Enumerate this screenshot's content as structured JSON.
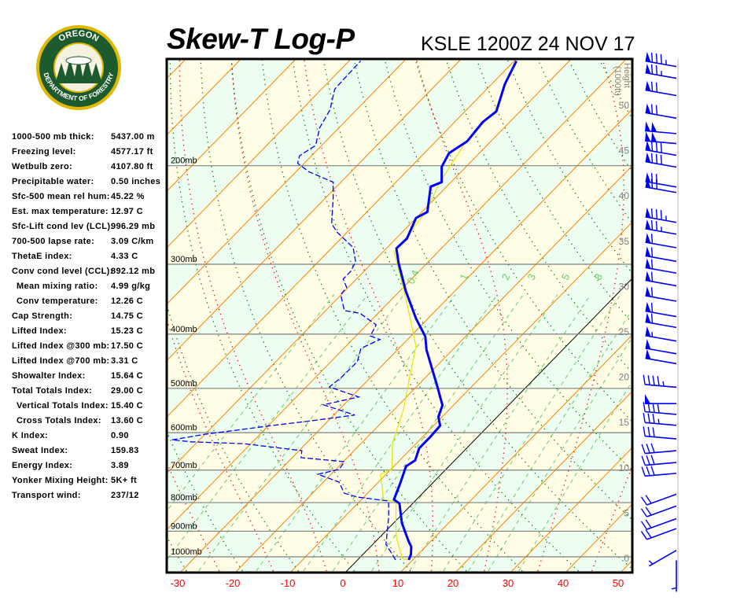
{
  "header": {
    "title": "Skew-T Log-P",
    "station_time": "KSLE 1200Z 24 NOV 17"
  },
  "logo": {
    "text_top": "OREGON",
    "text_bottom": "DEPARTMENT OF FORESTRY"
  },
  "indices": [
    {
      "label": "1000-500 mb thick:",
      "value": "5437.00 m"
    },
    {
      "label": "Freezing level:",
      "value": "4577.17 ft"
    },
    {
      "label": "Wetbulb zero:",
      "value": "4107.80 ft"
    },
    {
      "label": "Precipitable water:",
      "value": "0.50 inches"
    },
    {
      "label": "Sfc-500 mean rel hum:",
      "value": "45.22 %"
    },
    {
      "label": "Est. max temperature:",
      "value": "12.97 C"
    },
    {
      "label": "Sfc-Lift cond lev (LCL):",
      "value": "996.29 mb"
    },
    {
      "label": "700-500 lapse rate:",
      "value": "3.09 C/km"
    },
    {
      "label": "ThetaE index:",
      "value": "4.33 C"
    },
    {
      "label": "Conv cond level (CCL):",
      "value": "892.12 mb"
    },
    {
      "label": "Mean mixing ratio:",
      "value": "4.99 g/kg",
      "sub": true
    },
    {
      "label": "Conv temperature:",
      "value": "12.26 C",
      "sub": true
    },
    {
      "label": "Cap Strength:",
      "value": "14.75 C"
    },
    {
      "label": "Lifted Index:",
      "value": "15.23 C"
    },
    {
      "label": "Lifted Index @300 mb:",
      "value": "17.50 C"
    },
    {
      "label": "Lifted Index @700 mb:",
      "value": "3.31 C"
    },
    {
      "label": "Showalter Index:",
      "value": "15.64 C"
    },
    {
      "label": "Total Totals Index:",
      "value": "29.00 C"
    },
    {
      "label": "Vertical Totals Index:",
      "value": "15.40 C",
      "sub": true
    },
    {
      "label": "Cross Totals Index:",
      "value": "13.60 C",
      "sub": true
    },
    {
      "label": "K Index:",
      "value": "0.90"
    },
    {
      "label": "Sweat Index:",
      "value": "159.83"
    },
    {
      "label": "Energy Index:",
      "value": "3.89"
    },
    {
      "label": "Yonker Mixing Height:",
      "value": "5K+ ft"
    },
    {
      "label": "Transport wind:",
      "value": "237/12"
    }
  ],
  "chart_data": {
    "type": "line",
    "title": "Skew-T Log-P",
    "x_ticks": [
      "-30",
      "-20",
      "-10",
      "0",
      "10",
      "20",
      "30",
      "40",
      "50"
    ],
    "x_tick_values": [
      -30,
      -20,
      -10,
      0,
      10,
      20,
      30,
      40,
      50
    ],
    "pressure_labels": [
      {
        "p": 200,
        "label": "200mb"
      },
      {
        "p": 300,
        "label": "300mb"
      },
      {
        "p": 400,
        "label": "400mb"
      },
      {
        "p": 500,
        "label": "500mb"
      },
      {
        "p": 600,
        "label": "600mb"
      },
      {
        "p": 700,
        "label": "700mb"
      },
      {
        "p": 800,
        "label": "800mb"
      },
      {
        "p": 900,
        "label": "900mb"
      },
      {
        "p": 1000,
        "label": "1000mb"
      }
    ],
    "pressure_range_mb": [
      1050,
      130
    ],
    "height_axis": {
      "label_line1": "Height",
      "label_line2": "(1000ft)",
      "ticks": [
        "0",
        "5",
        "10",
        "15",
        "20",
        "25",
        "30",
        "35",
        "40",
        "45",
        "50"
      ],
      "tick_values": [
        0,
        5,
        10,
        15,
        20,
        25,
        30,
        35,
        40,
        45,
        50
      ]
    },
    "mixing_ratio_labels": [
      {
        "w": 0.4,
        "label": "0.4"
      },
      {
        "w": 1,
        "label": "1"
      },
      {
        "w": 2,
        "label": "2"
      },
      {
        "w": 3,
        "label": "3"
      },
      {
        "w": 5,
        "label": "5"
      },
      {
        "w": 8,
        "label": "8"
      }
    ],
    "series_temperature": [
      [
        1013,
        9.3
      ],
      [
        990,
        8.7
      ],
      [
        959,
        7.4
      ],
      [
        937,
        5.9
      ],
      [
        870,
        1.5
      ],
      [
        803,
        -2.4
      ],
      [
        790,
        -4.1
      ],
      [
        740,
        -5.8
      ],
      [
        689,
        -7.8
      ],
      [
        672,
        -7.2
      ],
      [
        640,
        -8.6
      ],
      [
        611,
        -8.6
      ],
      [
        583,
        -8.8
      ],
      [
        562,
        -10.7
      ],
      [
        536,
        -12.0
      ],
      [
        494,
        -16.5
      ],
      [
        427,
        -24.7
      ],
      [
        404,
        -27.3
      ],
      [
        375,
        -32.2
      ],
      [
        335,
        -38.9
      ],
      [
        299,
        -45.1
      ],
      [
        281,
        -48.2
      ],
      [
        270,
        -48.0
      ],
      [
        248,
        -50.0
      ],
      [
        242,
        -49.0
      ],
      [
        218,
        -52.9
      ],
      [
        214,
        -51.7
      ],
      [
        201,
        -54.4
      ],
      [
        190,
        -55.5
      ],
      [
        181,
        -54.3
      ],
      [
        167,
        -54.9
      ],
      [
        160,
        -54.3
      ],
      [
        143,
        -57.6
      ],
      [
        130,
        -59.6
      ]
    ],
    "series_dewpoint": [
      [
        1013,
        6.9
      ],
      [
        984,
        4.9
      ],
      [
        950,
        2.4
      ],
      [
        848,
        -2.0
      ],
      [
        795,
        -4.8
      ],
      [
        782,
        -11.2
      ],
      [
        770,
        -14.2
      ],
      [
        735,
        -17.2
      ],
      [
        712,
        -22.4
      ],
      [
        698,
        -19.4
      ],
      [
        676,
        -19.8
      ],
      [
        665,
        -28.4
      ],
      [
        646,
        -29.5
      ],
      [
        628,
        -41.2
      ],
      [
        623,
        -51.0
      ],
      [
        618,
        -55.0
      ],
      [
        604,
        -50.0
      ],
      [
        583,
        -39.6
      ],
      [
        571,
        -32.8
      ],
      [
        558,
        -26.2
      ],
      [
        535,
        -33.7
      ],
      [
        518,
        -28.7
      ],
      [
        497,
        -35.8
      ],
      [
        478,
        -35.3
      ],
      [
        448,
        -35.2
      ],
      [
        424,
        -36.9
      ],
      [
        409,
        -35.0
      ],
      [
        403,
        -37.4
      ],
      [
        385,
        -38.3
      ],
      [
        367,
        -43.3
      ],
      [
        363,
        -46.6
      ],
      [
        340,
        -50.1
      ],
      [
        330,
        -50.3
      ],
      [
        319,
        -52.4
      ],
      [
        309,
        -52.4
      ],
      [
        297,
        -53.2
      ],
      [
        280,
        -56.2
      ],
      [
        263,
        -61.8
      ],
      [
        254,
        -64.3
      ],
      [
        229,
        -68.5
      ],
      [
        214,
        -71.4
      ],
      [
        205,
        -77.7
      ],
      [
        198,
        -81.2
      ],
      [
        192,
        -82.2
      ],
      [
        184,
        -81.1
      ],
      [
        171,
        -83.5
      ],
      [
        159,
        -84.8
      ],
      [
        146,
        -87.6
      ],
      [
        137,
        -87.8
      ],
      [
        130,
        -87.9
      ]
    ],
    "series_yellow": [
      [
        1013,
        9.1
      ],
      [
        1006,
        7.8
      ],
      [
        922,
        3.0
      ],
      [
        856,
        -0.3
      ],
      [
        797,
        -3.3
      ],
      [
        790,
        -6.0
      ],
      [
        712,
        -11.0
      ],
      [
        698,
        -9.8
      ],
      [
        626,
        -14.4
      ],
      [
        544,
        -18.4
      ],
      [
        478,
        -22.9
      ],
      [
        420,
        -27.3
      ],
      [
        346,
        -37.5
      ],
      [
        285,
        -48.0
      ],
      [
        270,
        -48.3
      ],
      [
        242,
        -49.3
      ],
      [
        214,
        -52.0
      ],
      [
        181,
        -54.5
      ],
      [
        160,
        -54.6
      ],
      [
        131,
        -59.6
      ]
    ],
    "winds": [
      {
        "height_kft": 54.2,
        "dir": 280,
        "speed_kt": 85
      },
      {
        "height_kft": 52.9,
        "dir": 280,
        "speed_kt": 75
      },
      {
        "height_kft": 51.0,
        "dir": 280,
        "speed_kt": 70
      },
      {
        "height_kft": 48.5,
        "dir": 280,
        "speed_kt": 70
      },
      {
        "height_kft": 46.8,
        "dir": 275,
        "speed_kt": 100
      },
      {
        "height_kft": 45.7,
        "dir": 275,
        "speed_kt": 100
      },
      {
        "height_kft": 44.4,
        "dir": 280,
        "speed_kt": 80
      },
      {
        "height_kft": 43.1,
        "dir": 280,
        "speed_kt": 80
      },
      {
        "height_kft": 40.9,
        "dir": 280,
        "speed_kt": 70
      },
      {
        "height_kft": 40.3,
        "dir": 280,
        "speed_kt": 70
      },
      {
        "height_kft": 37.0,
        "dir": 280,
        "speed_kt": 85
      },
      {
        "height_kft": 35.7,
        "dir": 280,
        "speed_kt": 75
      },
      {
        "height_kft": 34.2,
        "dir": 280,
        "speed_kt": 60
      },
      {
        "height_kft": 32.7,
        "dir": 280,
        "speed_kt": 60
      },
      {
        "height_kft": 31.4,
        "dir": 280,
        "speed_kt": 60
      },
      {
        "height_kft": 30.0,
        "dir": 280,
        "speed_kt": 60
      },
      {
        "height_kft": 28.3,
        "dir": 280,
        "speed_kt": 60
      },
      {
        "height_kft": 26.6,
        "dir": 280,
        "speed_kt": 60
      },
      {
        "height_kft": 25.4,
        "dir": 280,
        "speed_kt": 60
      },
      {
        "height_kft": 23.9,
        "dir": 280,
        "speed_kt": 55
      },
      {
        "height_kft": 22.5,
        "dir": 280,
        "speed_kt": 50
      },
      {
        "height_kft": 21.4,
        "dir": 280,
        "speed_kt": 50
      },
      {
        "height_kft": 18.8,
        "dir": 275,
        "speed_kt": 45
      },
      {
        "height_kft": 17.0,
        "dir": 270,
        "speed_kt": 50
      },
      {
        "height_kft": 15.8,
        "dir": 275,
        "speed_kt": 40
      },
      {
        "height_kft": 14.6,
        "dir": 275,
        "speed_kt": 35
      },
      {
        "height_kft": 13.1,
        "dir": 275,
        "speed_kt": 30
      },
      {
        "height_kft": 11.8,
        "dir": 265,
        "speed_kt": 30
      },
      {
        "height_kft": 10.5,
        "dir": 265,
        "speed_kt": 30
      },
      {
        "height_kft": 9.3,
        "dir": 265,
        "speed_kt": 30
      },
      {
        "height_kft": 7.0,
        "dir": 250,
        "speed_kt": 20
      },
      {
        "height_kft": 5.7,
        "dir": 250,
        "speed_kt": 20
      },
      {
        "height_kft": 4.3,
        "dir": 250,
        "speed_kt": 20
      },
      {
        "height_kft": 3.2,
        "dir": 250,
        "speed_kt": 20
      },
      {
        "height_kft": 0.8,
        "dir": 240,
        "speed_kt": 5
      },
      {
        "height_kft": -0.3,
        "dir": 180,
        "speed_kt": 5
      }
    ],
    "colors": {
      "temperature": "#0000ff",
      "dewpoint": "#0000ff",
      "yellow_trace": "#e6e600",
      "isotherm": "#ff8000",
      "zero_isotherm": "#000000",
      "dry_adiabat": "#008000",
      "moist_adiabat": "#ff0000",
      "mixing_ratio": "#66cc66",
      "isobar": "#808080",
      "band_a": "#fffde6",
      "band_b": "#edfdef",
      "x_tick_label": "#ff0000",
      "height_label": "#808080"
    }
  }
}
